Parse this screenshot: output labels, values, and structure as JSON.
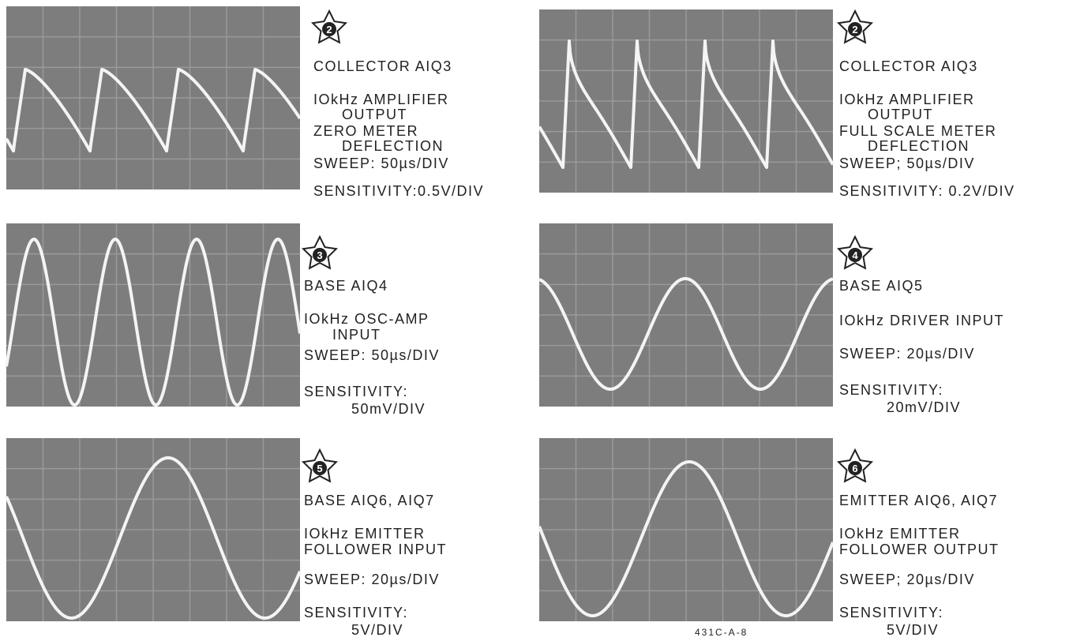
{
  "panels": [
    {
      "badge": "2",
      "lines": [
        "COLLECTOR AIQ3",
        "IOkHz AMPLIFIER",
        "OUTPUT",
        "ZERO METER",
        "DEFLECTION",
        "SWEEP: 50µs/DIV",
        "SENSITIVITY:0.5V/DIV"
      ]
    },
    {
      "badge": "2",
      "lines": [
        "COLLECTOR AIQ3",
        "IOkHz AMPLIFIER",
        "OUTPUT",
        "FULL SCALE METER",
        "DEFLECTION",
        "SWEEP; 50µs/DIV",
        "SENSITIVITY: 0.2V/DIV"
      ]
    },
    {
      "badge": "3",
      "lines": [
        "BASE AIQ4",
        "IOkHz OSC-AMP",
        "INPUT",
        "SWEEP: 50µs/DIV",
        "SENSITIVITY:",
        "50mV/DIV"
      ]
    },
    {
      "badge": "4",
      "lines": [
        "BASE AIQ5",
        "IOkHz DRIVER INPUT",
        "SWEEP: 20µs/DIV",
        "SENSITIVITY:",
        "20mV/DIV"
      ]
    },
    {
      "badge": "5",
      "lines": [
        "BASE AIQ6, AIQ7",
        "IOkHz EMITTER",
        "FOLLOWER INPUT",
        "SWEEP: 20µs/DIV",
        "SENSITIVITY:",
        "5V/DIV"
      ]
    },
    {
      "badge": "6",
      "lines": [
        "EMITTER AIQ6, AIQ7",
        "IOkHz EMITTER",
        "FOLLOWER OUTPUT",
        "SWEEP; 20µs/DIV",
        "SENSITIVITY:",
        "5V/DIV"
      ]
    }
  ],
  "footer": "431C-A-8"
}
